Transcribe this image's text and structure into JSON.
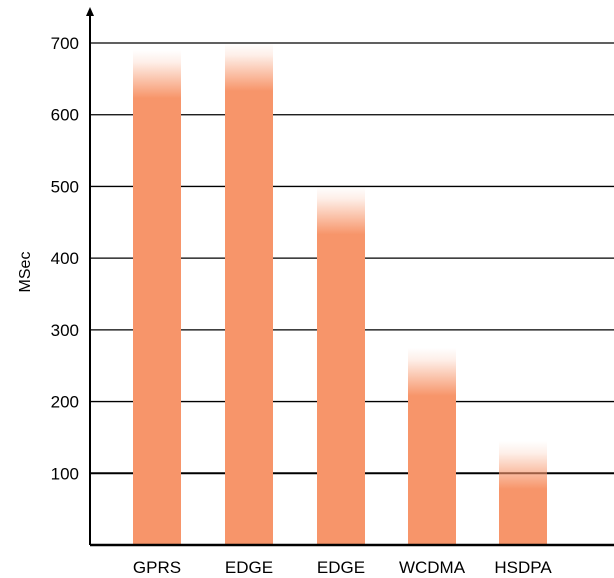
{
  "chart_data": {
    "type": "bar",
    "title": "",
    "xlabel": "",
    "ylabel": "MSec",
    "categories": [
      "GPRS",
      "EDGE",
      "EDGE",
      "WCDMA",
      "HSDPA"
    ],
    "values": [
      690,
      700,
      500,
      275,
      145
    ],
    "ylim": [
      0,
      700
    ],
    "yticks": [
      100,
      200,
      300,
      400,
      500,
      600,
      700
    ],
    "grid": true,
    "legend": "none",
    "colors": {
      "bar": "#f7956a",
      "grid": "#000000",
      "axis": "#000000"
    }
  }
}
